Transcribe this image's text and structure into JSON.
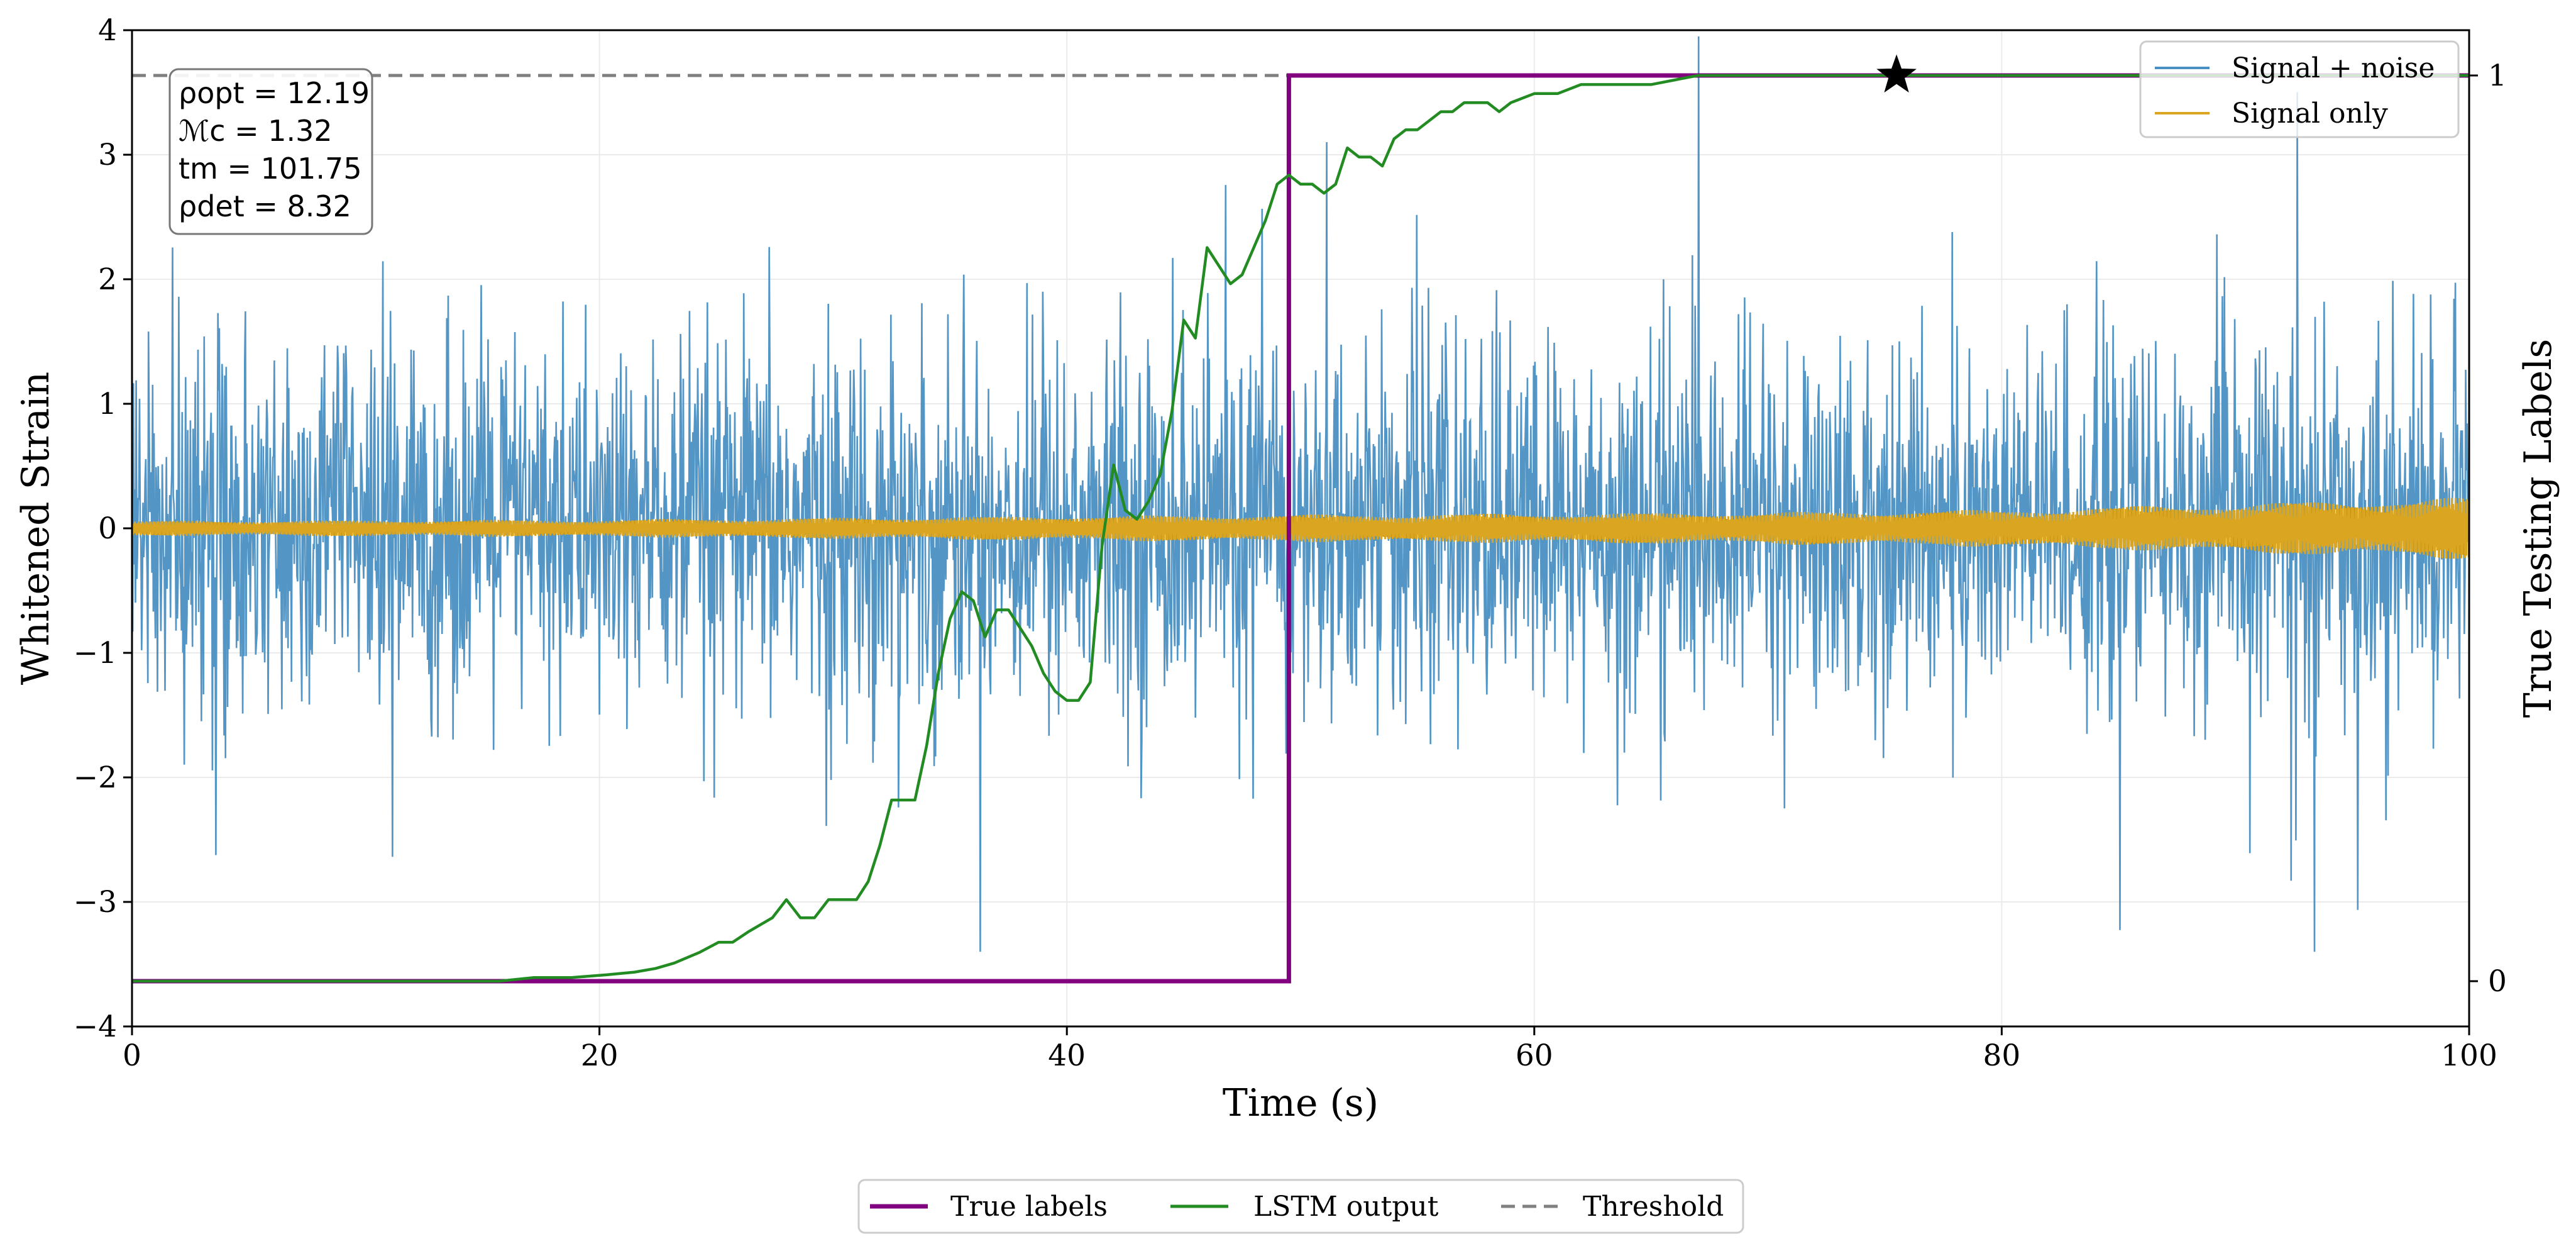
{
  "chart_data": {
    "type": "line",
    "xlabel": "Time (s)",
    "ylabel": "Whitened Strain",
    "ylabel_right": "True Testing Labels",
    "xlim": [
      0,
      100
    ],
    "ylim": [
      -4,
      4
    ],
    "ylim_right": [
      -0.05,
      1.05
    ],
    "x_ticks": [
      "0",
      "20",
      "40",
      "60",
      "80",
      "100"
    ],
    "y_ticks": [
      "4",
      "3",
      "2",
      "1",
      "0",
      "−1",
      "−2",
      "−3",
      "−4"
    ],
    "y_ticks_right": [
      "1",
      "0"
    ],
    "grid": true,
    "info_box": [
      "ρopt = 12.19",
      "ℳc = 1.32",
      "tm = 101.75",
      "ρdet = 8.32"
    ],
    "series": [
      {
        "name": "Signal + noise",
        "color": "#4a8fc2",
        "axis": "left",
        "description": "noisy strain, roughly ±1.5 with spikes to ±3.5"
      },
      {
        "name": "Signal only",
        "color": "#daa520",
        "axis": "left",
        "envelope_x": [
          0,
          20,
          40,
          50,
          60,
          70,
          80,
          90,
          100
        ],
        "envelope_amp": [
          0.06,
          0.07,
          0.1,
          0.11,
          0.12,
          0.13,
          0.15,
          0.2,
          0.25
        ]
      },
      {
        "name": "True labels",
        "color": "#800080",
        "axis": "right",
        "x": [
          0,
          49.5,
          49.5,
          100
        ],
        "y": [
          0,
          0,
          1,
          1
        ]
      },
      {
        "name": "LSTM output",
        "color": "#228b22",
        "axis": "right",
        "x": [
          0,
          15.7,
          17.2,
          18.8,
          20.3,
          21.5,
          22.4,
          23.2,
          24.3,
          25.1,
          25.7,
          26.4,
          27.4,
          28,
          28.6,
          29.2,
          29.8,
          30.4,
          31,
          31.5,
          32,
          32.5,
          33,
          33.5,
          34,
          34.5,
          35,
          35.5,
          36,
          36.5,
          37,
          37.5,
          38,
          38.5,
          39,
          39.5,
          40,
          40.5,
          41,
          41.5,
          42,
          42.5,
          43,
          43.5,
          44,
          44.5,
          45,
          45.5,
          46,
          46.5,
          47,
          47.5,
          48,
          48.5,
          49,
          49.5,
          50,
          50.5,
          51,
          51.5,
          52,
          52.5,
          53,
          53.5,
          54,
          54.5,
          55,
          55.5,
          56,
          56.5,
          57,
          57.5,
          58,
          58.5,
          59,
          60,
          61,
          62,
          63,
          65,
          67,
          70,
          75,
          80,
          100
        ],
        "y": [
          0,
          0,
          0.004,
          0.004,
          0.007,
          0.01,
          0.014,
          0.02,
          0.032,
          0.043,
          0.043,
          0.055,
          0.07,
          0.09,
          0.07,
          0.07,
          0.09,
          0.09,
          0.09,
          0.11,
          0.15,
          0.2,
          0.2,
          0.2,
          0.26,
          0.34,
          0.4,
          0.43,
          0.42,
          0.38,
          0.41,
          0.41,
          0.39,
          0.37,
          0.34,
          0.32,
          0.31,
          0.31,
          0.33,
          0.48,
          0.57,
          0.52,
          0.51,
          0.53,
          0.56,
          0.63,
          0.73,
          0.71,
          0.81,
          0.79,
          0.77,
          0.78,
          0.81,
          0.84,
          0.88,
          0.89,
          0.88,
          0.88,
          0.87,
          0.88,
          0.92,
          0.91,
          0.91,
          0.9,
          0.93,
          0.94,
          0.94,
          0.95,
          0.96,
          0.96,
          0.97,
          0.97,
          0.97,
          0.96,
          0.97,
          0.98,
          0.98,
          0.99,
          0.99,
          0.99,
          1.0,
          1.0,
          1.0,
          1.0,
          1.0
        ]
      },
      {
        "name": "Threshold",
        "color": "#808080",
        "axis": "right",
        "style": "dashed",
        "y": 1.0
      }
    ],
    "marker": {
      "shape": "star",
      "x": 75.5,
      "y_right": 1.0,
      "color": "#000000"
    },
    "legend_upper": {
      "placement": "top-right",
      "entries": [
        "Signal + noise",
        "Signal only"
      ]
    },
    "legend_lower": {
      "placement": "bottom-center",
      "entries": [
        "True labels",
        "LSTM output",
        "Threshold"
      ]
    }
  }
}
